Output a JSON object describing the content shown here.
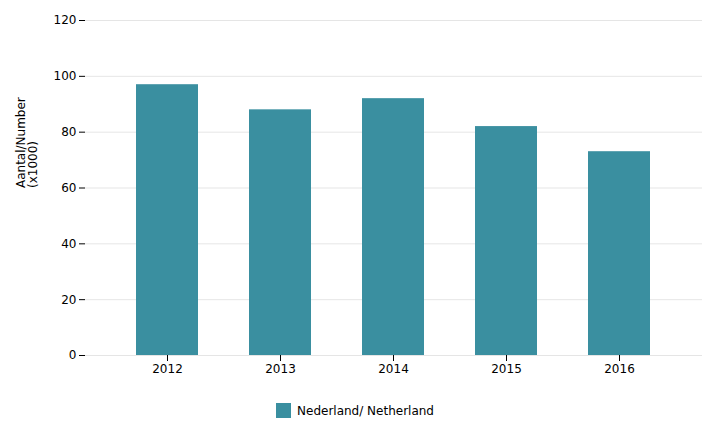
{
  "chart_data": {
    "type": "bar",
    "categories": [
      "2012",
      "2013",
      "2014",
      "2015",
      "2016"
    ],
    "series": [
      {
        "name": "Nederland/ Netherland",
        "color": "#3a8fa0",
        "values": [
          97,
          88,
          92,
          82,
          73
        ]
      }
    ],
    "ylabel": "Aantal/Number\n(x1000)",
    "ylim": [
      0,
      120
    ],
    "yticks": [
      0,
      20,
      40,
      60,
      80,
      100,
      120
    ],
    "grid": true,
    "legend": "bottom"
  }
}
